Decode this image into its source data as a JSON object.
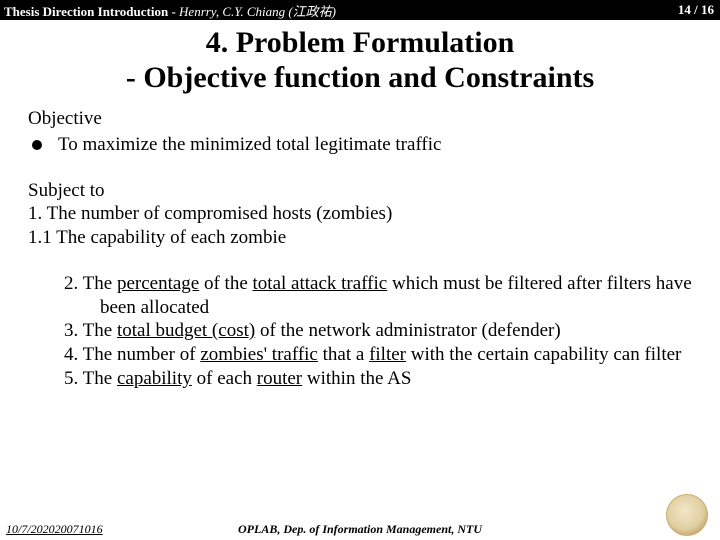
{
  "header": {
    "title_bold": "Thesis Direction Introduction - ",
    "title_italic": "Henrry, C.Y. Chiang (江政祐)",
    "page_current": "14",
    "page_sep": " / ",
    "page_total": "16"
  },
  "title_line1": "4. Problem Formulation",
  "title_line2": "- Objective function and Constraints",
  "obj_label": "Objective",
  "obj_bullet": "To maximize the minimized total legitimate traffic",
  "subject_label": "Subject to",
  "c1": "1. The number of compromised hosts (zombies)",
  "c11": "1.1 The capability of each zombie",
  "c2_pre": "2. The ",
  "c2_u1": "percentage",
  "c2_mid1": " of the ",
  "c2_u2": "total attack traffic",
  "c2_post": " which must be filtered after filters have been allocated",
  "c3_pre": "3. The ",
  "c3_u": "total budget (cost)",
  "c3_post": " of the network administrator (defender)",
  "c4_pre": "4. The number of ",
  "c4_u1": "zombies' traffic",
  "c4_mid": " that a ",
  "c4_u2": "filter",
  "c4_post": " with the certain capability can filter",
  "c5_pre": "5. The ",
  "c5_u1": "capability",
  "c5_mid": " of each ",
  "c5_u2": "router",
  "c5_post": " within the AS",
  "footer": {
    "date": "10/7/202020071016",
    "center": "OPLAB, Dep. of Information Management, NTU"
  }
}
